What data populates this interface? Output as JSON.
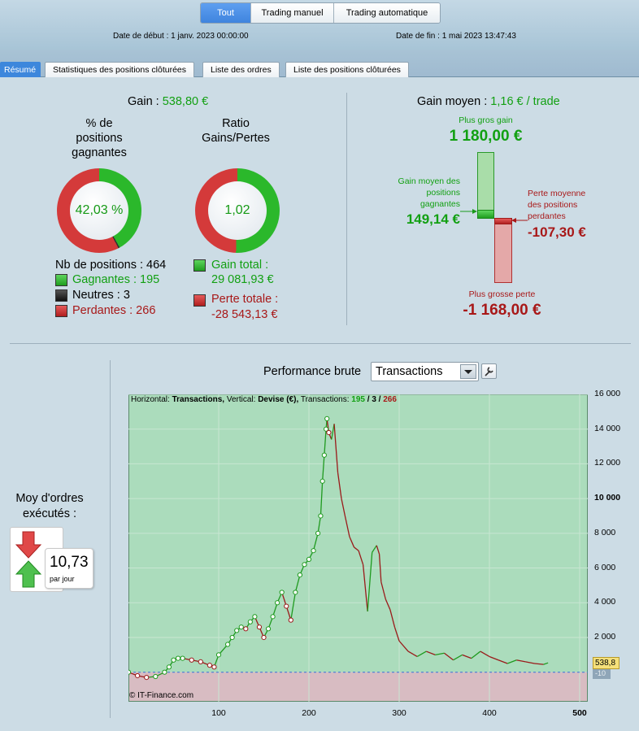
{
  "header": {
    "segments": [
      "Tout",
      "Trading manuel",
      "Trading automatique"
    ],
    "start_date": "Date de début :  1 janv. 2023 00:00:00",
    "end_date": "Date de fin :  1 mai 2023 13:47:43"
  },
  "tabs": [
    "Résumé",
    "Statistiques des positions clôturées",
    "Liste des ordres",
    "Liste des positions clôturées"
  ],
  "summary": {
    "gain_label": "Gain :",
    "gain_value": "538,80 €",
    "pct_title": "% de\npositions\ngagnantes",
    "pct_value": "42,03 %",
    "ratio_title": "Ratio\nGains/Pertes",
    "ratio_value": "1,02",
    "nb_positions": "Nb de positions : 464",
    "gagnantes": "Gagnantes : 195",
    "neutres": "Neutres : 3",
    "perdantes": "Perdantes : 266",
    "gain_total_label": "Gain total :",
    "gain_total_value": "29 081,93 €",
    "perte_totale_label": "Perte totale :",
    "perte_totale_value": "-28 543,13 €"
  },
  "gain_moyen": {
    "label": "Gain moyen :",
    "value": "1,16 € / trade",
    "plus_gros_gain_label": "Plus gros gain",
    "plus_gros_gain_value": "1 180,00 €",
    "gain_moyen_pos_label": "Gain moyen des\npositions\ngagnantes",
    "gain_moyen_pos_value": "149,14 €",
    "perte_moyenne_label": "Perte moyenne\ndes positions\nperdantes",
    "perte_moyenne_value": "-107,30 €",
    "plus_grosse_perte_label": "Plus grosse perte",
    "plus_grosse_perte_value": "-1 168,00 €"
  },
  "orders": {
    "label": "Moy d'ordres\nexécutés :",
    "value": "10,73",
    "unit": "par jour"
  },
  "performance": {
    "title": "Performance brute",
    "select_value": "Transactions",
    "info_prefix": "Horizontal:",
    "info_h": "Transactions,",
    "info_mid": "Vertical:",
    "info_v": "Devise (€),",
    "info_tx": "Transactions:",
    "info_g": "195",
    "info_slash1": "/",
    "info_n": "3",
    "info_slash2": "/",
    "info_l": "266",
    "watermark": "© IT-Finance.com",
    "last_value_tag": "538,8",
    "zero_tag": "-10"
  },
  "chart_data": {
    "type": "line",
    "xlabel": "",
    "ylabel": "",
    "xlim": [
      0,
      500
    ],
    "ylim": [
      -1700,
      16000
    ],
    "x_ticks": [
      "100",
      "200",
      "300",
      "400",
      "500"
    ],
    "y_ticks": [
      "2 000",
      "4 000",
      "6 000",
      "8 000",
      "10 000",
      "12 000",
      "14 000",
      "16 000"
    ],
    "series": [
      {
        "x": [
          0,
          10,
          20,
          30,
          40,
          45,
          50,
          55,
          60,
          70,
          80,
          90,
          95,
          100,
          110,
          115,
          120,
          125,
          130,
          135,
          140,
          145,
          150,
          155,
          160,
          165,
          170,
          175,
          180,
          185,
          190,
          195,
          200,
          205,
          210,
          213,
          215,
          217,
          219,
          220,
          222,
          225,
          228,
          232,
          236,
          240,
          245,
          250,
          255,
          260,
          265,
          270,
          275,
          278,
          280,
          285,
          290,
          295,
          300,
          310,
          320,
          330,
          340,
          350,
          360,
          370,
          380,
          390,
          400,
          410,
          420,
          430,
          440,
          450,
          460,
          465
        ],
        "y": [
          0,
          -200,
          -300,
          -250,
          0,
          300,
          700,
          800,
          800,
          700,
          600,
          400,
          300,
          1000,
          1600,
          2000,
          2400,
          2600,
          2500,
          2900,
          3200,
          2600,
          2000,
          2500,
          3200,
          4000,
          4600,
          3800,
          3000,
          4600,
          5600,
          6200,
          6500,
          7000,
          8000,
          9000,
          11000,
          12500,
          14000,
          14600,
          13800,
          13400,
          14300,
          11500,
          10000,
          9000,
          7800,
          7200,
          7000,
          6200,
          3500,
          6900,
          7300,
          6800,
          5200,
          4200,
          3600,
          2600,
          1800,
          1200,
          900,
          1200,
          1000,
          1100,
          700,
          1000,
          800,
          1200,
          900,
          700,
          500,
          700,
          600,
          500,
          450,
          538.8
        ]
      }
    ]
  }
}
